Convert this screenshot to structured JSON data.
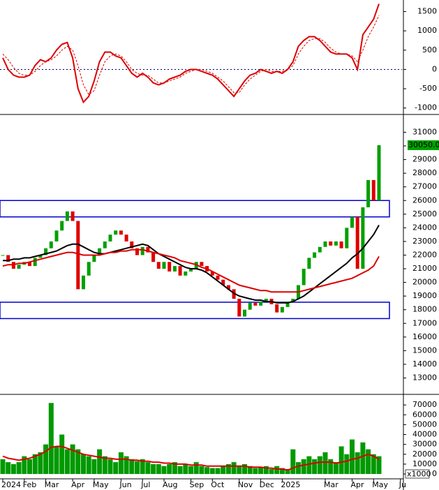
{
  "chart_data": [
    {
      "type": "line",
      "ylim": [
        -1150,
        1800
      ],
      "yticks": [
        -1000,
        -500,
        0,
        500,
        1000,
        1500
      ],
      "zero_line": true,
      "series": [
        {
          "color": "#dd0000",
          "values": [
            300,
            0,
            -150,
            -200,
            -200,
            -150,
            100,
            250,
            200,
            300,
            500,
            650,
            700,
            300,
            -500,
            -850,
            -700,
            -300,
            200,
            450,
            450,
            350,
            300,
            100,
            -100,
            -200,
            -100,
            -200,
            -350,
            -400,
            -350,
            -250,
            -200,
            -150,
            -50,
            0,
            0,
            -50,
            -100,
            -150,
            -250,
            -400,
            -550,
            -700,
            -500,
            -300,
            -150,
            -100,
            0,
            -50,
            -100,
            -50,
            -100,
            0,
            200,
            600,
            750,
            850,
            850,
            750,
            600,
            450,
            400,
            400,
            400,
            300,
            0,
            900,
            1100,
            1300,
            1700,
            null,
            null,
            null,
            null
          ]
        },
        {
          "color": "#dd0000",
          "dash": true,
          "values": [
            400,
            250,
            50,
            -100,
            -150,
            -150,
            -50,
            100,
            200,
            250,
            350,
            500,
            600,
            500,
            100,
            -400,
            -650,
            -550,
            -150,
            200,
            350,
            400,
            350,
            200,
            0,
            -100,
            -150,
            -150,
            -250,
            -350,
            -350,
            -300,
            -250,
            -200,
            -100,
            -50,
            0,
            0,
            -50,
            -100,
            -200,
            -300,
            -450,
            -600,
            -600,
            -400,
            -250,
            -150,
            -50,
            0,
            -50,
            -50,
            -50,
            0,
            100,
            400,
            600,
            750,
            800,
            800,
            700,
            550,
            450,
            400,
            400,
            350,
            200,
            500,
            850,
            1100,
            1400,
            null,
            null,
            null,
            null
          ]
        }
      ]
    },
    {
      "type": "candlestick",
      "ylim": [
        11900,
        32200
      ],
      "yticks": [
        13000,
        14000,
        15000,
        16000,
        17000,
        18000,
        19000,
        20000,
        21000,
        22000,
        23000,
        24000,
        25000,
        26000,
        27000,
        28000,
        29000,
        30000,
        31000
      ],
      "up_color": "#00a000",
      "down_color": "#e00000",
      "last_price": {
        "value": 30050,
        "label": "30050.00"
      },
      "zones": [
        {
          "ymin": 24800,
          "ymax": 26000,
          "color": "#0000cc"
        },
        {
          "ymin": 17350,
          "ymax": 18550,
          "color": "#0000cc"
        }
      ],
      "values": [
        22000,
        21500,
        21000,
        21300,
        21500,
        21200,
        21800,
        22000,
        22500,
        23000,
        23800,
        24500,
        25200,
        24500,
        19500,
        20500,
        21500,
        22000,
        22500,
        23000,
        23500,
        23800,
        23500,
        23000,
        22500,
        22000,
        22600,
        22200,
        21500,
        21000,
        21500,
        20800,
        21200,
        20500,
        20800,
        21000,
        21500,
        21200,
        20800,
        20500,
        20200,
        19800,
        19500,
        18800,
        17500,
        18000,
        18500,
        18300,
        18600,
        18800,
        18400,
        17800,
        18200,
        18600,
        18800,
        19800,
        21000,
        21800,
        22200,
        22600,
        23000,
        22700,
        23000,
        22500,
        24000,
        24800,
        21000,
        25500,
        27500,
        26000,
        30050,
        null,
        null,
        null,
        null
      ],
      "series": [
        {
          "color": "#000000",
          "values": [
            21600,
            21600,
            21700,
            21700,
            21800,
            21800,
            21900,
            22000,
            22100,
            22200,
            22300,
            22500,
            22700,
            22800,
            22800,
            22600,
            22400,
            22200,
            22100,
            22100,
            22200,
            22300,
            22400,
            22500,
            22600,
            22700,
            22800,
            22700,
            22400,
            22100,
            21900,
            21700,
            21500,
            21300,
            21100,
            21000,
            21000,
            20900,
            20700,
            20400,
            20100,
            19800,
            19500,
            19200,
            19000,
            18900,
            18800,
            18700,
            18700,
            18600,
            18600,
            18500,
            18500,
            18500,
            18600,
            18800,
            19000,
            19300,
            19600,
            19900,
            20200,
            20500,
            20800,
            21100,
            21400,
            21800,
            22100,
            22500,
            23000,
            23500,
            24200,
            null,
            null,
            null,
            null
          ]
        },
        {
          "color": "#dd0000",
          "values": [
            21200,
            21300,
            21300,
            21400,
            21400,
            21500,
            21600,
            21700,
            21800,
            21900,
            22000,
            22100,
            22200,
            22200,
            22100,
            22000,
            22000,
            22000,
            22000,
            22100,
            22200,
            22200,
            22300,
            22300,
            22400,
            22400,
            22400,
            22300,
            22200,
            22100,
            22000,
            21900,
            21800,
            21600,
            21500,
            21400,
            21300,
            21100,
            21000,
            20800,
            20600,
            20400,
            20200,
            20000,
            19800,
            19700,
            19600,
            19500,
            19400,
            19400,
            19300,
            19300,
            19300,
            19300,
            19300,
            19300,
            19400,
            19500,
            19600,
            19700,
            19800,
            19900,
            20000,
            20100,
            20200,
            20300,
            20500,
            20700,
            20900,
            21200,
            21900,
            null,
            null,
            null,
            null
          ]
        }
      ]
    },
    {
      "type": "bar",
      "ylim": [
        -4200,
        80000
      ],
      "yticks": [
        0,
        10000,
        20000,
        30000,
        40000,
        50000,
        60000,
        70000
      ],
      "unit": "x1000",
      "color": "#009900",
      "categories": [
        "2024",
        null,
        null,
        null,
        "Feb",
        null,
        null,
        null,
        "Mar",
        null,
        null,
        null,
        null,
        "Apr",
        null,
        null,
        null,
        "May",
        null,
        null,
        null,
        null,
        "Jun",
        null,
        null,
        null,
        "Jul",
        null,
        null,
        null,
        "Aug",
        null,
        null,
        null,
        null,
        "Sep",
        null,
        null,
        null,
        "Oct",
        null,
        null,
        null,
        null,
        "Nov",
        null,
        null,
        null,
        "Dec",
        null,
        null,
        null,
        "2025",
        null,
        null,
        null,
        null,
        null,
        null,
        null,
        "Mar",
        null,
        null,
        null,
        null,
        "Apr",
        null,
        null,
        null,
        "May",
        null,
        null,
        null,
        null,
        "Ju"
      ],
      "values": [
        15000,
        12000,
        10000,
        12000,
        18000,
        15000,
        20000,
        22000,
        30000,
        72000,
        28000,
        40000,
        25000,
        30000,
        25000,
        20000,
        18000,
        15000,
        25000,
        18000,
        15000,
        12000,
        22000,
        18000,
        15000,
        13000,
        15000,
        12000,
        10000,
        10000,
        8000,
        10000,
        12000,
        8000,
        10000,
        8000,
        12000,
        8000,
        7000,
        6000,
        6000,
        8000,
        10000,
        12000,
        8000,
        10000,
        8000,
        6000,
        7000,
        8000,
        5000,
        8000,
        6000,
        5000,
        25000,
        12000,
        15000,
        18000,
        15000,
        18000,
        22000,
        15000,
        12000,
        28000,
        20000,
        35000,
        22000,
        32000,
        25000,
        20000,
        18000,
        null,
        null,
        null,
        null
      ],
      "series": [
        {
          "color": "#dd0000",
          "values": [
            18000,
            16000,
            15000,
            14000,
            15000,
            16000,
            18000,
            20000,
            23000,
            27000,
            28000,
            28000,
            26000,
            24000,
            22000,
            20000,
            19000,
            18000,
            17000,
            16000,
            16000,
            15000,
            15000,
            15000,
            14000,
            14000,
            13000,
            13000,
            12000,
            12000,
            11000,
            11000,
            10000,
            10000,
            10000,
            9000,
            9000,
            9000,
            8000,
            8000,
            8000,
            8000,
            8000,
            8000,
            8000,
            8000,
            7000,
            7000,
            7000,
            6000,
            6000,
            5000,
            5000,
            4000,
            6000,
            8000,
            9000,
            10000,
            11000,
            12000,
            12000,
            12000,
            11000,
            12000,
            13000,
            15000,
            16000,
            18000,
            20000,
            18000,
            15000,
            null,
            null,
            null,
            null
          ]
        }
      ]
    }
  ]
}
